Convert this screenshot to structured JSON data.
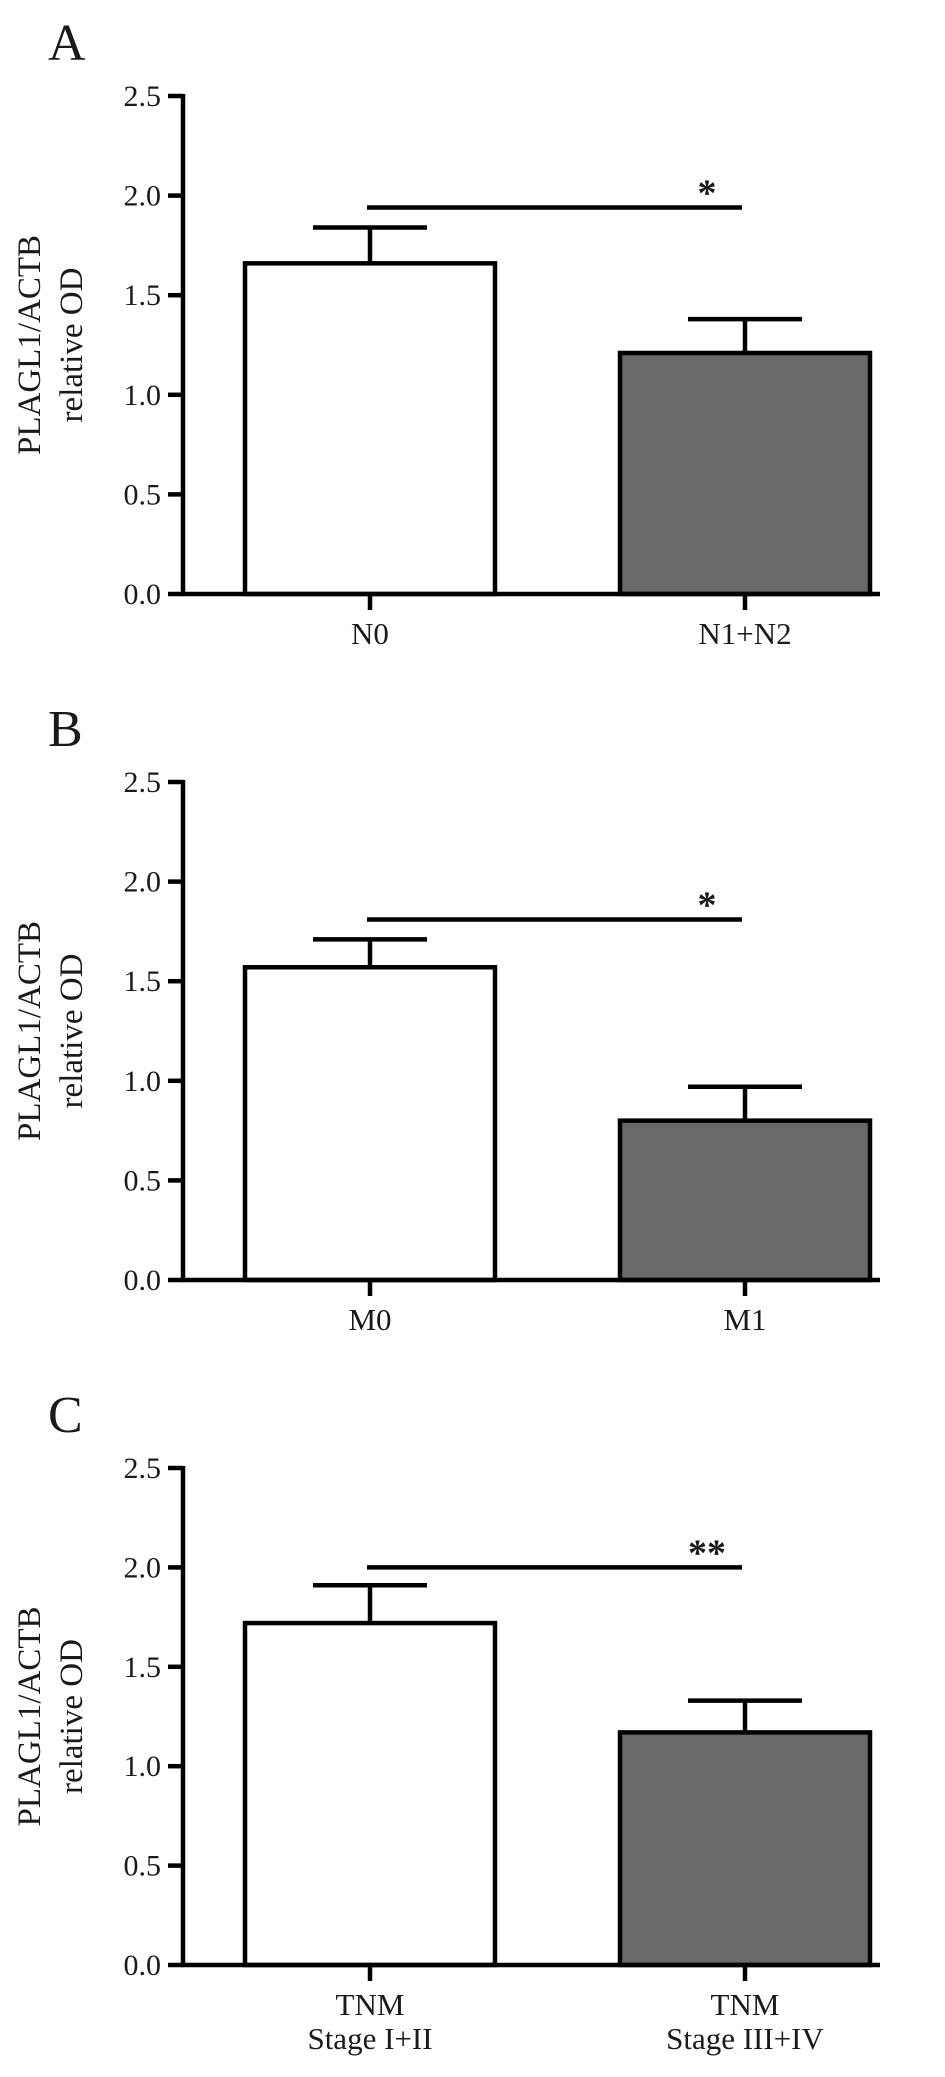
{
  "chart_data": [
    {
      "type": "bar",
      "panel_label": "A",
      "categories": [
        "N0",
        "N1+N2"
      ],
      "values": [
        1.66,
        1.21
      ],
      "errors": [
        0.18,
        0.17
      ],
      "bar_colors": [
        "#ffffff",
        "#696969"
      ],
      "ylabel_lines": [
        "PLAGL1/ACTB",
        "relative OD"
      ],
      "ylim": [
        0,
        2.5
      ],
      "yticks": [
        "0.0",
        "0.5",
        "1.0",
        "1.5",
        "2.0",
        "2.5"
      ],
      "significance": {
        "from": 0,
        "to": 1,
        "label": "*",
        "y": 1.94
      }
    },
    {
      "type": "bar",
      "panel_label": "B",
      "categories": [
        "M0",
        "M1"
      ],
      "values": [
        1.57,
        0.8
      ],
      "errors": [
        0.14,
        0.17
      ],
      "bar_colors": [
        "#ffffff",
        "#696969"
      ],
      "ylabel_lines": [
        "PLAGL1/ACTB",
        "relative OD"
      ],
      "ylim": [
        0,
        2.5
      ],
      "yticks": [
        "0.0",
        "0.5",
        "1.0",
        "1.5",
        "2.0",
        "2.5"
      ],
      "significance": {
        "from": 0,
        "to": 1,
        "label": "*",
        "y": 1.81
      }
    },
    {
      "type": "bar",
      "panel_label": "C",
      "categories": [
        [
          "TNM",
          "Stage I+II"
        ],
        [
          "TNM",
          "Stage III+IV"
        ]
      ],
      "values": [
        1.72,
        1.17
      ],
      "errors": [
        0.19,
        0.16
      ],
      "bar_colors": [
        "#ffffff",
        "#696969"
      ],
      "ylabel_lines": [
        "PLAGL1/ACTB",
        "relative OD"
      ],
      "ylim": [
        0,
        2.5
      ],
      "yticks": [
        "0.0",
        "0.5",
        "1.0",
        "1.5",
        "2.0",
        "2.5"
      ],
      "significance": {
        "from": 0,
        "to": 1,
        "label": "**",
        "y": 2.0
      }
    }
  ]
}
